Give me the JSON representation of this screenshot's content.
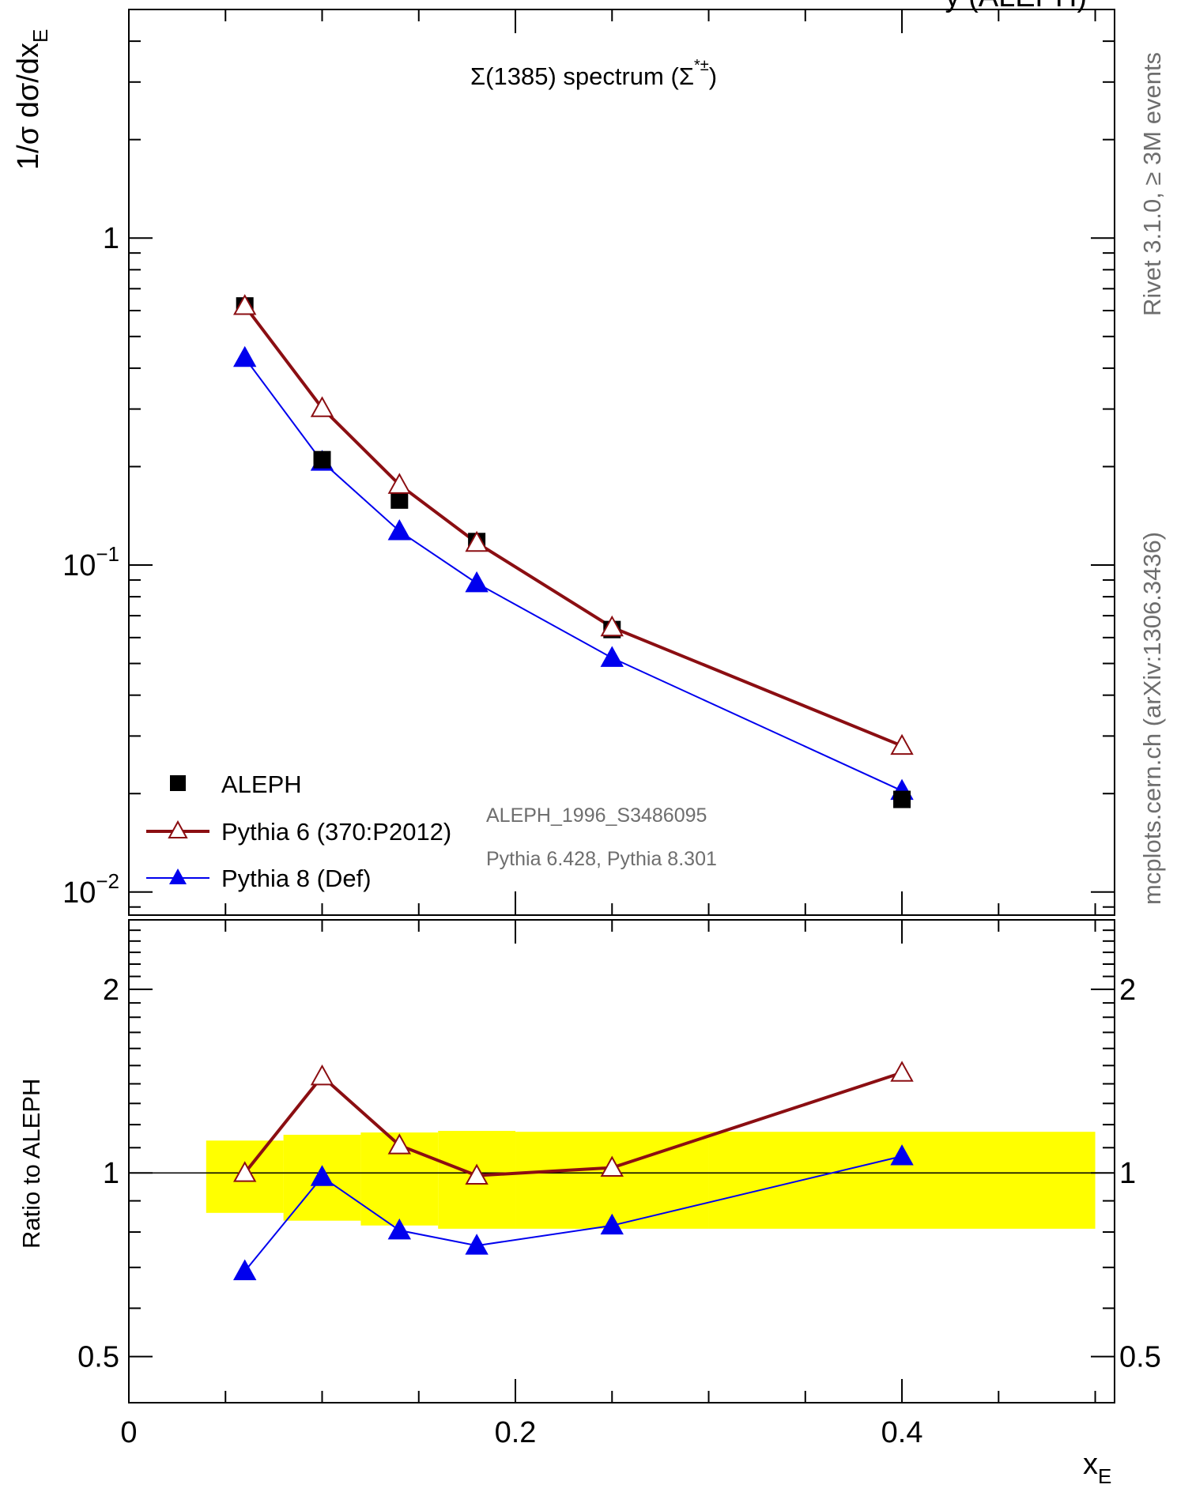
{
  "header": {
    "title_prefix": "Σ(1385) spectrum (",
    "title_symbol": "Σ",
    "title_sup": "*±",
    "title_suffix": ")",
    "top_clipped": "y (ALEPH)"
  },
  "side_labels": {
    "upper": "Rivet 3.1.0, ≥ 3M events",
    "lower": "mcplots.cern.ch (arXiv:1306.3436)"
  },
  "annotations": {
    "analysis": "ALEPH_1996_S3486095",
    "generators": "Pythia 6.428, Pythia 8.301"
  },
  "legend": [
    {
      "label": "ALEPH",
      "marker": "square",
      "color": "#000000"
    },
    {
      "label": "Pythia 6 (370:P2012)",
      "marker": "open-triangle",
      "color": "#8b0e12"
    },
    {
      "label": "Pythia 8 (Def)",
      "marker": "filled-triangle",
      "color": "#0000ee"
    }
  ],
  "colors": {
    "data": "#000000",
    "pythia6": "#8b0e12",
    "pythia8": "#0000ee",
    "band": "#ffff00",
    "side_text": "#6e6e6e"
  },
  "chart_data": [
    {
      "type": "scatter",
      "name": "main",
      "ylabel_base": "1/σ dσ/dx",
      "ylabel_sub": "E",
      "yscale": "log",
      "xlim": [
        0,
        0.51
      ],
      "ylim": [
        0.0085,
        5.0
      ],
      "y_ticks": [
        {
          "value": 1,
          "label": "1",
          "exp": ""
        },
        {
          "value": 0.1,
          "label": "10",
          "exp": "−1"
        },
        {
          "value": 0.01,
          "label": "10",
          "exp": "−2"
        }
      ],
      "series": [
        {
          "name": "ALEPH",
          "marker": "square",
          "x": [
            0.06,
            0.1,
            0.14,
            0.18,
            0.25,
            0.4
          ],
          "y": [
            0.62,
            0.21,
            0.158,
            0.118,
            0.0635,
            0.0192
          ]
        },
        {
          "name": "Pythia 6 (370:P2012)",
          "marker": "open-triangle",
          "x": [
            0.06,
            0.1,
            0.14,
            0.18,
            0.25,
            0.4
          ],
          "y": [
            0.62,
            0.302,
            0.176,
            0.117,
            0.0645,
            0.028
          ]
        },
        {
          "name": "Pythia 8 (Def)",
          "marker": "filled-triangle",
          "x": [
            0.06,
            0.1,
            0.14,
            0.18,
            0.25,
            0.4
          ],
          "y": [
            0.43,
            0.207,
            0.127,
            0.088,
            0.052,
            0.0204
          ]
        }
      ]
    },
    {
      "type": "scatter",
      "name": "ratio",
      "xlabel_base": "x",
      "xlabel_sub": "E",
      "ylabel": "Ratio to ALEPH",
      "yscale": "log",
      "xlim": [
        0,
        0.51
      ],
      "ylim": [
        0.42,
        2.6
      ],
      "x_ticks": [
        {
          "value": 0,
          "label": "0"
        },
        {
          "value": 0.2,
          "label": "0.2"
        },
        {
          "value": 0.4,
          "label": "0.4"
        }
      ],
      "y_ticks": [
        {
          "value": 2,
          "label": "2"
        },
        {
          "value": 1,
          "label": "1"
        },
        {
          "value": 0.5,
          "label": "0.5"
        }
      ],
      "reference_line": 1,
      "uncertainty_band": [
        {
          "x0": 0.04,
          "x1": 0.08,
          "lo": 0.86,
          "hi": 1.13
        },
        {
          "x0": 0.08,
          "x1": 0.12,
          "lo": 0.835,
          "hi": 1.155
        },
        {
          "x0": 0.12,
          "x1": 0.16,
          "lo": 0.82,
          "hi": 1.165
        },
        {
          "x0": 0.16,
          "x1": 0.2,
          "lo": 0.81,
          "hi": 1.172
        },
        {
          "x0": 0.2,
          "x1": 0.3,
          "lo": 0.81,
          "hi": 1.168
        },
        {
          "x0": 0.3,
          "x1": 0.5,
          "lo": 0.81,
          "hi": 1.168
        }
      ],
      "series": [
        {
          "name": "Pythia 6 (370:P2012)",
          "marker": "open-triangle",
          "x": [
            0.06,
            0.1,
            0.14,
            0.18,
            0.25,
            0.4
          ],
          "y": [
            1.0,
            1.44,
            1.11,
            0.99,
            1.02,
            1.46
          ]
        },
        {
          "name": "Pythia 8 (Def)",
          "marker": "filled-triangle",
          "x": [
            0.06,
            0.1,
            0.14,
            0.18,
            0.25,
            0.4
          ],
          "y": [
            0.69,
            0.985,
            0.805,
            0.76,
            0.82,
            1.065
          ]
        }
      ]
    }
  ]
}
